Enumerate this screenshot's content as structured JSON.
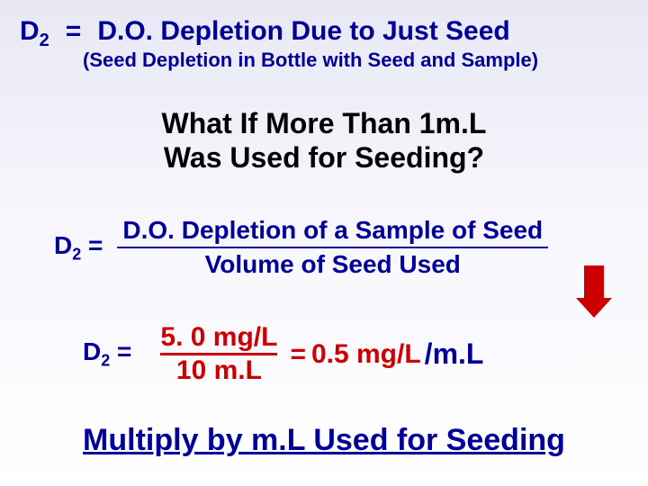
{
  "line1": {
    "var": "D",
    "sub": "2",
    "eq": "=",
    "rhs": "D.O. Depletion Due to Just Seed"
  },
  "line2": "(Seed Depletion in Bottle with Seed and Sample)",
  "heading": {
    "l1": "What If More Than 1m.L",
    "l2": "Was Used for Seeding?"
  },
  "eq1": {
    "var": "D",
    "sub": "2",
    "eq": "=",
    "num": "D.O. Depletion of a Sample of Seed",
    "den": "Volume of Seed Used"
  },
  "eq2": {
    "var": "D",
    "sub": "2",
    "eq": "=",
    "num": "5. 0 mg/L",
    "den": "10 m.L",
    "equals": "=",
    "result": "0.5 mg/L",
    "perml": "/m.L"
  },
  "footer": "Multiply by m.L Used for Seeding",
  "colors": {
    "navy": "#000099",
    "red": "#cc0000",
    "black": "#000000"
  }
}
